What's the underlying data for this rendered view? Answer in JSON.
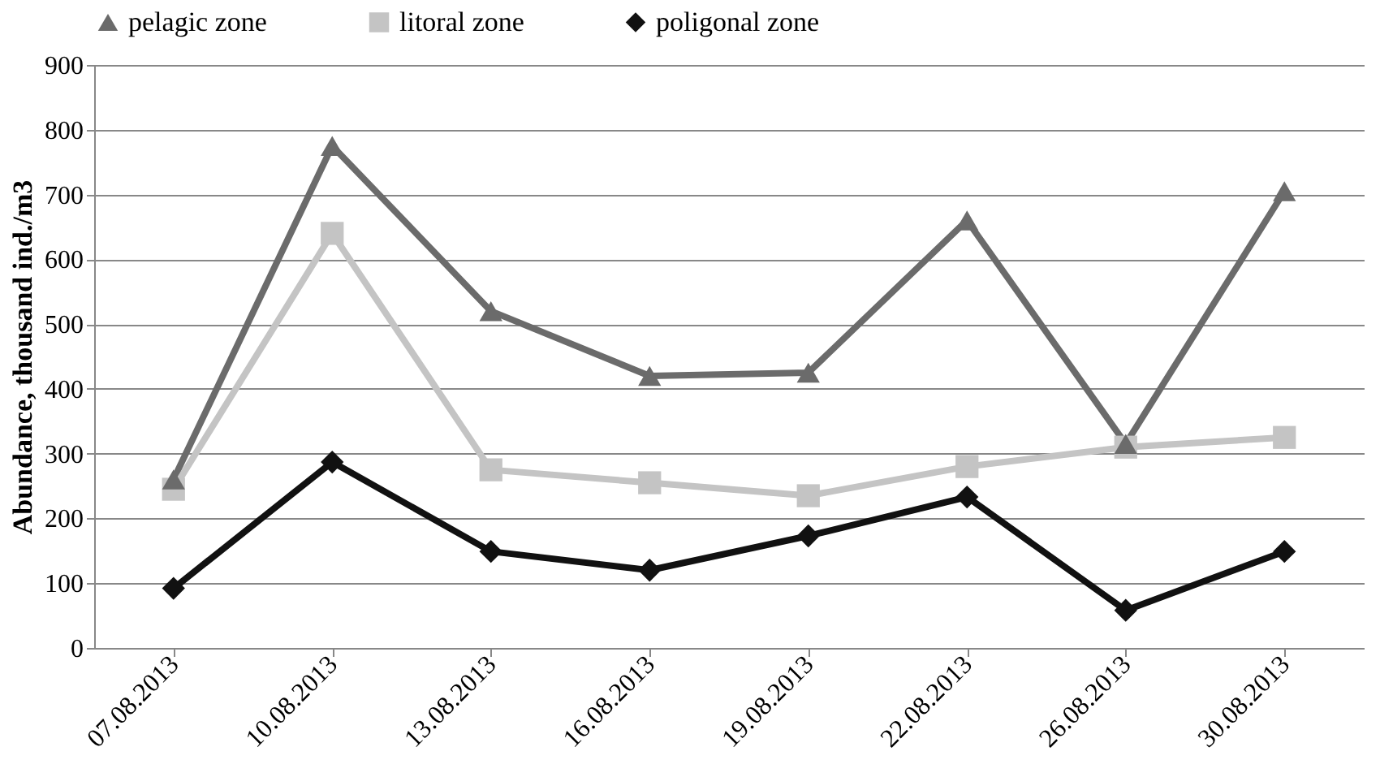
{
  "chart_data": {
    "type": "line",
    "ylabel": "Abundance, thousand ind./m3",
    "categories": [
      "07.08.2013",
      "10.08.2013",
      "13.08.2013",
      "16.08.2013",
      "19.08.2013",
      "22.08.2013",
      "26.08.2013",
      "30.08.2013"
    ],
    "series": [
      {
        "name": "pelagic zone",
        "color": "#6b6b6b",
        "marker": "triangle",
        "values": [
          260,
          775,
          520,
          420,
          425,
          660,
          315,
          705
        ]
      },
      {
        "name": "litoral zone",
        "color": "#c4c4c4",
        "marker": "square",
        "values": [
          245,
          640,
          275,
          255,
          235,
          280,
          310,
          325
        ]
      },
      {
        "name": "poligonal zone",
        "color": "#111111",
        "marker": "diamond",
        "values": [
          92,
          287,
          149,
          120,
          173,
          233,
          58,
          149
        ]
      }
    ],
    "ylim": [
      0,
      900
    ],
    "yticks": [
      0,
      100,
      200,
      300,
      400,
      500,
      600,
      700,
      800,
      900
    ],
    "grid": "y",
    "legend": "top"
  }
}
